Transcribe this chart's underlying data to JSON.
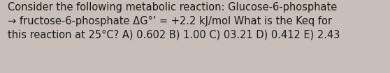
{
  "text": "Consider the following metabolic reaction: Glucose-6-phosphate\n→ fructose-6-phosphate ΔG°’ = +2.2 kJ/mol What is the Keq for\nthis reaction at 25°C? A) 0.602 B) 1.00 C) 03.21 D) 0.412 E) 2.43",
  "bg_color": "#c8c0b8",
  "text_color": "#1a1a1a",
  "font_size": 10.5,
  "fig_width": 5.58,
  "fig_height": 1.05,
  "dpi": 100
}
